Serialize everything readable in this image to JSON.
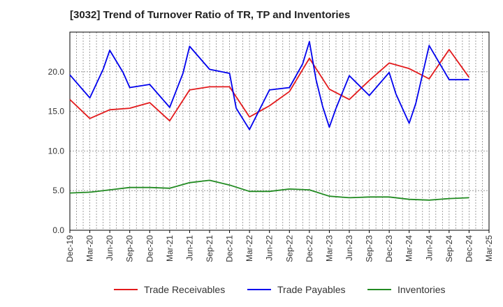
{
  "chart_data": {
    "type": "line",
    "title": "[3032]  Trend of Turnover Ratio of TR, TP and Inventories",
    "xlabel": "",
    "ylabel": "",
    "ylim": [
      0,
      25
    ],
    "yticks": [
      "0.0",
      "5.0",
      "10.0",
      "15.0",
      "20.0"
    ],
    "x_tick_labels": [
      "Dec-19",
      "Mar-20",
      "Jun-20",
      "Sep-20",
      "Dec-20",
      "Mar-21",
      "Jun-21",
      "Sep-21",
      "Dec-21",
      "Mar-22",
      "Jun-22",
      "Sep-22",
      "Dec-22",
      "Mar-23",
      "Jun-23",
      "Sep-23",
      "Dec-23",
      "Mar-24",
      "Jun-24",
      "Sep-24",
      "Dec-24",
      "Mar-25"
    ],
    "x": [
      "Dec-19",
      "Jan-20",
      "Feb-20",
      "Mar-20",
      "Apr-20",
      "May-20",
      "Jun-20",
      "Jul-20",
      "Aug-20",
      "Sep-20",
      "Oct-20",
      "Nov-20",
      "Dec-20",
      "Jan-21",
      "Feb-21",
      "Mar-21",
      "Apr-21",
      "May-21",
      "Jun-21",
      "Jul-21",
      "Aug-21",
      "Sep-21",
      "Oct-21",
      "Nov-21",
      "Dec-21",
      "Jan-22",
      "Feb-22",
      "Mar-22",
      "Apr-22",
      "May-22",
      "Jun-22",
      "Jul-22",
      "Aug-22",
      "Sep-22",
      "Oct-22",
      "Nov-22",
      "Dec-22",
      "Jan-23",
      "Feb-23",
      "Mar-23",
      "Apr-23",
      "May-23",
      "Jun-23",
      "Jul-23",
      "Aug-23",
      "Sep-23",
      "Oct-23",
      "Nov-23",
      "Dec-23",
      "Jan-24",
      "Feb-24",
      "Mar-24",
      "Apr-24",
      "May-24",
      "Jun-24",
      "Jul-24",
      "Aug-24",
      "Sep-24",
      "Oct-24",
      "Nov-24",
      "Dec-24"
    ],
    "series": [
      {
        "name": "Trade Receivables",
        "color": "#e31a1c",
        "x": [
          "Dec-19",
          "Mar-20",
          "Jun-20",
          "Sep-20",
          "Dec-20",
          "Mar-21",
          "Jun-21",
          "Sep-21",
          "Dec-21",
          "Mar-22",
          "Jun-22",
          "Sep-22",
          "Dec-22",
          "Mar-23",
          "Jun-23",
          "Sep-23",
          "Dec-23",
          "Mar-24",
          "Jun-24",
          "Sep-24",
          "Dec-24"
        ],
        "values": [
          16.5,
          14.1,
          15.2,
          15.4,
          16.1,
          13.8,
          17.7,
          18.1,
          18.1,
          14.3,
          15.7,
          17.5,
          21.7,
          17.8,
          16.5,
          18.9,
          21.1,
          20.4,
          19.1,
          22.8,
          19.3
        ]
      },
      {
        "name": "Trade Payables",
        "color": "#0000ee",
        "x": [
          "Dec-19",
          "Mar-20",
          "May-20",
          "Jun-20",
          "Aug-20",
          "Sep-20",
          "Dec-20",
          "Mar-21",
          "May-21",
          "Jun-21",
          "Sep-21",
          "Dec-21",
          "Jan-22",
          "Mar-22",
          "Jun-22",
          "Sep-22",
          "Nov-22",
          "Dec-22",
          "Jan-23",
          "Feb-23",
          "Mar-23",
          "Apr-23",
          "Jun-23",
          "Sep-23",
          "Dec-23",
          "Jan-24",
          "Mar-24",
          "Apr-24",
          "Jun-24",
          "Sep-24",
          "Dec-24"
        ],
        "values": [
          19.6,
          16.7,
          20.3,
          22.7,
          19.9,
          18.0,
          18.4,
          15.5,
          19.8,
          23.2,
          20.3,
          19.8,
          15.4,
          12.7,
          17.7,
          18.0,
          21.0,
          23.8,
          19.0,
          15.6,
          13.0,
          15.4,
          19.5,
          17.0,
          19.9,
          17.2,
          13.5,
          16.0,
          23.3,
          19.0,
          19.0
        ]
      },
      {
        "name": "Inventories",
        "color": "#228b22",
        "x": [
          "Dec-19",
          "Mar-20",
          "Jun-20",
          "Sep-20",
          "Dec-20",
          "Mar-21",
          "Jun-21",
          "Sep-21",
          "Dec-21",
          "Mar-22",
          "Jun-22",
          "Sep-22",
          "Dec-22",
          "Mar-23",
          "Jun-23",
          "Sep-23",
          "Dec-23",
          "Mar-24",
          "Jun-24",
          "Sep-24",
          "Dec-24"
        ],
        "values": [
          4.7,
          4.8,
          5.1,
          5.4,
          5.4,
          5.3,
          6.0,
          6.3,
          5.7,
          4.9,
          4.9,
          5.2,
          5.1,
          4.3,
          4.1,
          4.2,
          4.2,
          3.9,
          3.8,
          4.0,
          4.1
        ]
      }
    ],
    "grid": true,
    "legend": "bottom"
  }
}
